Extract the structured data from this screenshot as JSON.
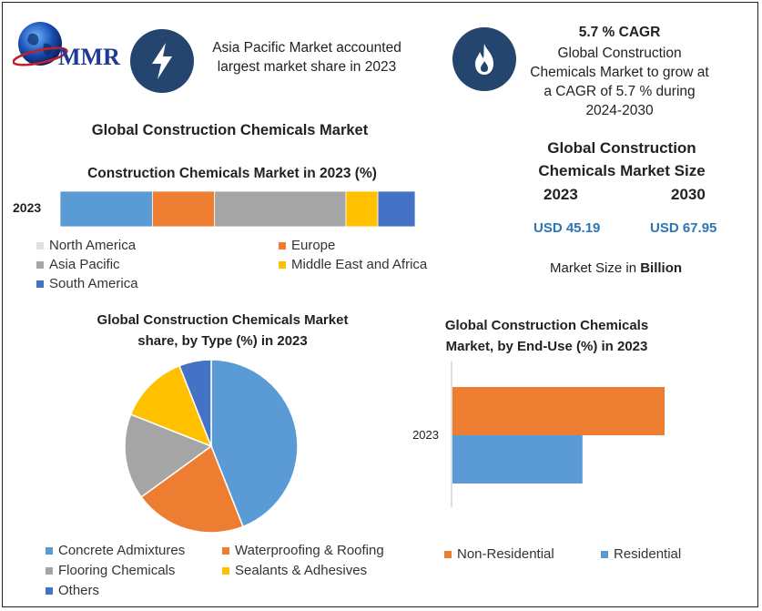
{
  "brand": {
    "logo_text": "MMR"
  },
  "highlights": [
    {
      "icon": "lightning-icon",
      "title": "",
      "text": "Asia Pacific Market accounted largest market share in 2023"
    },
    {
      "icon": "flame-icon",
      "title": "5.7 % CAGR",
      "text": "Global Construction Chemicals Market to grow at a CAGR of 5.7 % during 2024-2030"
    }
  ],
  "main_title": "Global Construction Chemicals Market",
  "market_size": {
    "title": "Global Construction Chemicals Market Size",
    "years": [
      "2023",
      "2030"
    ],
    "values": [
      "USD 45.19",
      "USD 67.95"
    ],
    "note_prefix": "Market Size in ",
    "note_bold": "Billion"
  },
  "chart_data": [
    {
      "type": "bar",
      "orientation": "horizontal",
      "stacked": true,
      "title": "Construction Chemicals Market in 2023 (%)",
      "categories": [
        "2023"
      ],
      "series": [
        {
          "name": "North America",
          "values": [
            26
          ],
          "color": "#5b9bd5"
        },
        {
          "name": "Europe",
          "values": [
            17.5
          ],
          "color": "#ed7d31"
        },
        {
          "name": "Asia Pacific",
          "values": [
            37
          ],
          "color": "#a5a5a5"
        },
        {
          "name": "Middle East and Africa",
          "values": [
            9
          ],
          "color": "#ffc000"
        },
        {
          "name": "South America",
          "values": [
            10.5
          ],
          "color": "#4472c4"
        }
      ],
      "legend": "bottom"
    },
    {
      "type": "pie",
      "title": "Global Construction Chemicals Market share, by Type (%) in 2023",
      "categories": [
        "Concrete Admixtures",
        "Waterproofing & Roofing",
        "Flooring Chemicals",
        "Sealants & Adhesives",
        "Others"
      ],
      "values": [
        44,
        21,
        16,
        13,
        6
      ],
      "colors": [
        "#5b9bd5",
        "#ed7d31",
        "#a5a5a5",
        "#ffc000",
        "#4472c4"
      ],
      "legend": "bottom"
    },
    {
      "type": "bar",
      "orientation": "horizontal",
      "title": "Global Construction Chemicals Market, by End-Use (%) in 2023",
      "categories": [
        "2023"
      ],
      "series": [
        {
          "name": "Non-Residential",
          "values": [
            62
          ],
          "color": "#ed7d31"
        },
        {
          "name": "Residential",
          "values": [
            38
          ],
          "color": "#5b9bd5"
        }
      ],
      "legend": "bottom"
    }
  ]
}
